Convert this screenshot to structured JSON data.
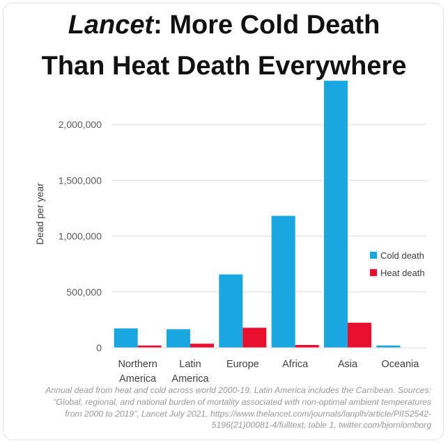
{
  "title": {
    "line1_italic": "Lancet",
    "line1_rest": ": More Cold Death",
    "line2": "Than Heat Death Everywhere"
  },
  "footnote": {
    "lines": [
      "Annual dead from heat and cold across world 2000-19. Latin America includes the Carribean. Sources:",
      "“Global, regional, and national burden of mortality associated with non-optimal ambient temperatures",
      "from 2000 to 2019”, Lancet July 2021, https://www.thelancet.com/journals/lanplh/article/PIIS2542-",
      "5196(21)00081-4/fulltext, table 1, twitter.com/bjornlomborg"
    ]
  },
  "chart_data": {
    "type": "bar",
    "title": "Lancet: More Cold Death Than Heat Death Everywhere",
    "ylabel": "Dead per year",
    "xlabel": "",
    "categories": [
      [
        "Northern",
        "America"
      ],
      [
        "Latin",
        "America"
      ],
      [
        "Europe"
      ],
      [
        "Africa"
      ],
      [
        "Asia"
      ],
      [
        "Oceania"
      ]
    ],
    "series": [
      {
        "name": "Cold death",
        "color": "#1aa7e0",
        "values": [
          173000,
          166000,
          657000,
          1182000,
          2393000,
          20000
        ]
      },
      {
        "name": "Heat death",
        "color": "#e8102e",
        "values": [
          20000,
          36000,
          179000,
          25000,
          224000,
          1000
        ]
      }
    ],
    "ylim": [
      0,
      2400000
    ],
    "yticks": [
      0,
      500000,
      1000000,
      1500000,
      2000000
    ],
    "ytick_labels": [
      "0",
      "500,000",
      "1,000,000",
      "1,500,000",
      "2,000,000"
    ],
    "grid": true,
    "legend_position": "right"
  }
}
